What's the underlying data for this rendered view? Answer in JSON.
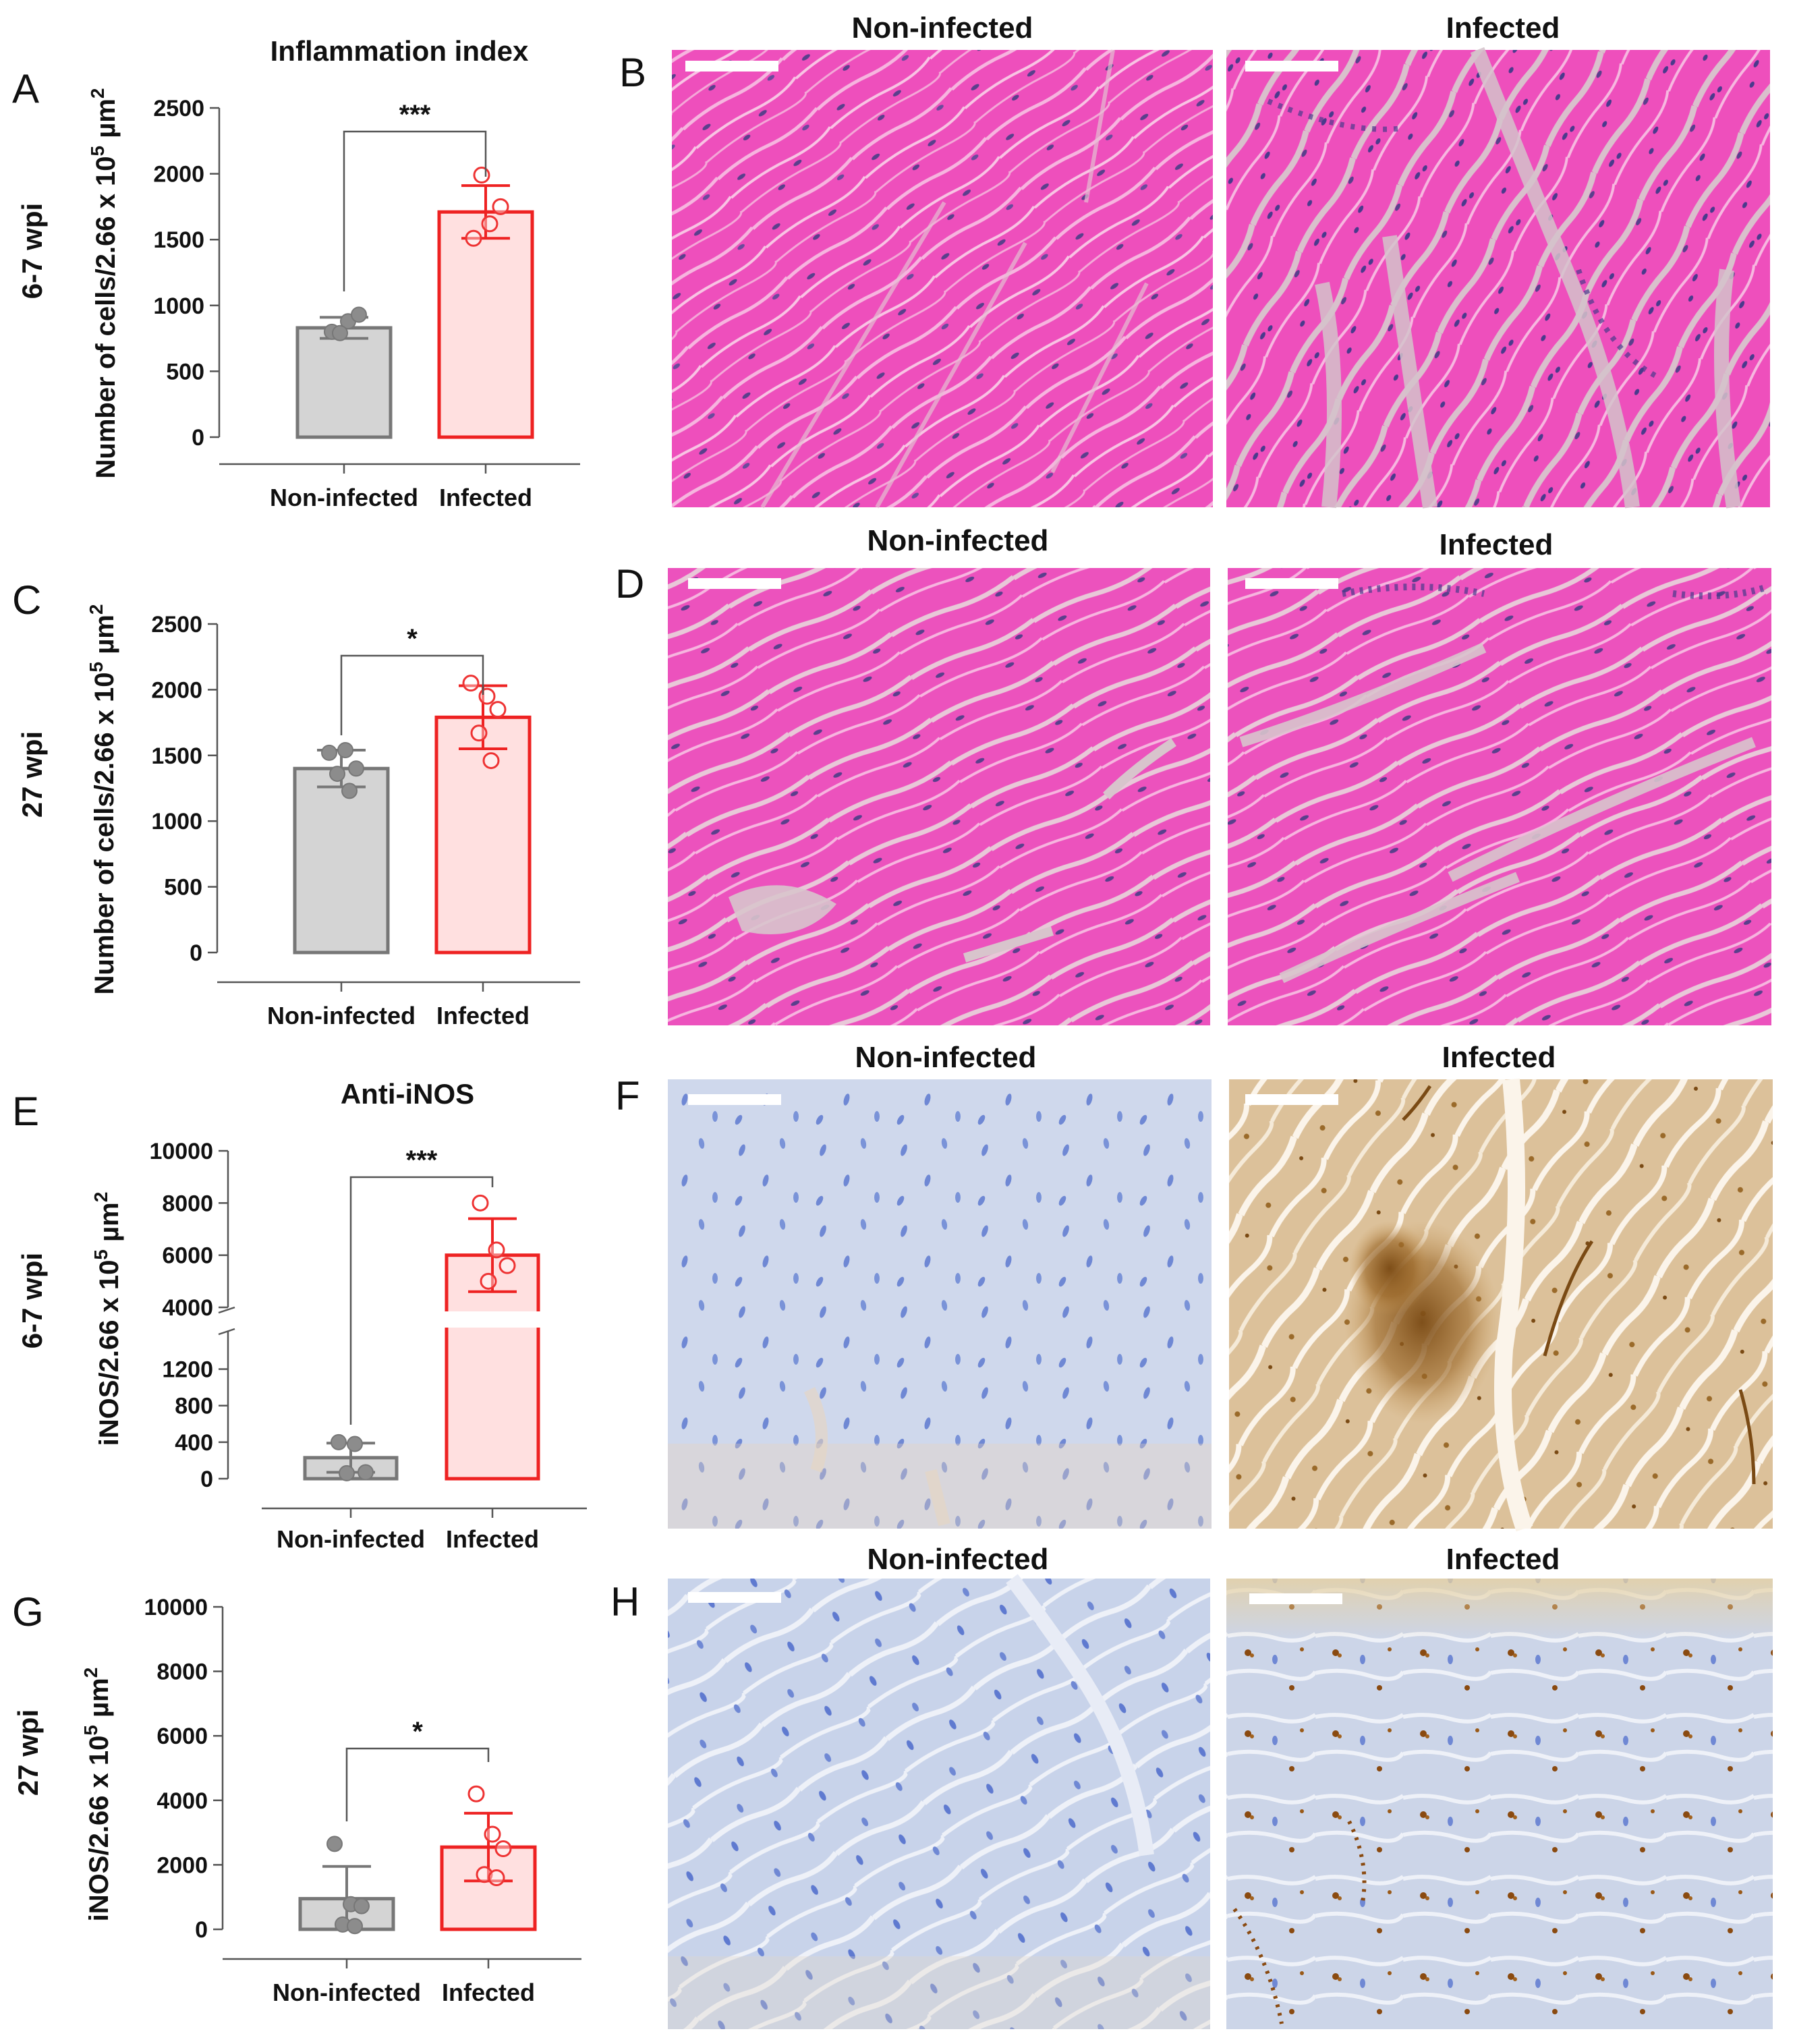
{
  "colors": {
    "control_fill": "#d4d4d4",
    "control_stroke": "#777777",
    "control_point": "#8c8c8c",
    "infected_fill": "#ffe0e0",
    "infected_stroke": "#ee2222",
    "infected_point": "#ee3333",
    "he_stain": "#ee4fbc",
    "he_gap": "#d6c0c8",
    "ihc_neg": "#c9d4ea",
    "ihc_pos": "#d8b988",
    "ihc_dark": "#7a4a14"
  },
  "icons": [
    "scale-bar"
  ],
  "panels": {
    "A": "A",
    "B": "B",
    "C": "C",
    "D": "D",
    "E": "E",
    "F": "F",
    "G": "G",
    "H": "H"
  },
  "rows": [
    "6-7 wpi",
    "27 wpi",
    "6-7 wpi",
    "27 wpi"
  ],
  "image_titles": {
    "non_infected": "Non-infected",
    "infected": "Infected"
  },
  "chart_data": [
    {
      "panel": "A",
      "type": "bar",
      "title": "Inflammation index",
      "ylabel_main": "Number of cells/2.66 x 10",
      "ylabel_sup1": "5",
      "ylabel_unit": " µm",
      "ylabel_sup2": "2",
      "categories": [
        "Non-infected",
        "Infected"
      ],
      "values": [
        830,
        1710
      ],
      "errors": [
        80,
        200
      ],
      "points": [
        [
          800,
          880,
          930,
          790
        ],
        [
          1510,
          1620,
          1750,
          1990
        ]
      ],
      "ylim": [
        0,
        2500
      ],
      "yticks": [
        0,
        500,
        1000,
        1500,
        2000,
        2500
      ],
      "significance": "***"
    },
    {
      "panel": "C",
      "type": "bar",
      "title": "",
      "ylabel_main": "Number of cells/2.66 x 10",
      "ylabel_sup1": "5",
      "ylabel_unit": " µm",
      "ylabel_sup2": "2",
      "categories": [
        "Non-infected",
        "Infected"
      ],
      "values": [
        1400,
        1790
      ],
      "errors": [
        140,
        240
      ],
      "points": [
        [
          1520,
          1540,
          1400,
          1360,
          1230
        ],
        [
          2050,
          1950,
          1850,
          1670,
          1460
        ]
      ],
      "ylim": [
        0,
        2500
      ],
      "yticks": [
        0,
        500,
        1000,
        1500,
        2000,
        2500
      ],
      "significance": "*"
    },
    {
      "panel": "E",
      "type": "bar",
      "title": "Anti-iNOS",
      "ylabel_main": "iNOS/2.66 x 10",
      "ylabel_sup1": "5",
      "ylabel_unit": " µm",
      "ylabel_sup2": "2",
      "categories": [
        "Non-infected",
        "Infected"
      ],
      "values": [
        230,
        6000
      ],
      "errors": [
        160,
        1400
      ],
      "points": [
        [
          400,
          380,
          70,
          60
        ],
        [
          8000,
          6200,
          5600,
          5000
        ]
      ],
      "axis_break": {
        "lower": [
          0,
          1500
        ],
        "upper": [
          4000,
          10000
        ]
      },
      "yticks_lower": [
        0,
        400,
        800,
        1200
      ],
      "yticks_upper": [
        4000,
        6000,
        8000,
        10000
      ],
      "significance": "***"
    },
    {
      "panel": "G",
      "type": "bar",
      "title": "",
      "ylabel_main": "iNOS/2.66 x 10",
      "ylabel_sup1": "5",
      "ylabel_unit": " µm",
      "ylabel_sup2": "2",
      "categories": [
        "Non-infected",
        "Infected"
      ],
      "values": [
        950,
        2550
      ],
      "errors": [
        1000,
        1050
      ],
      "points": [
        [
          2650,
          780,
          720,
          150,
          100
        ],
        [
          4200,
          2950,
          2500,
          1700,
          1600
        ]
      ],
      "ylim": [
        0,
        10000
      ],
      "yticks": [
        0,
        2000,
        4000,
        6000,
        8000,
        10000
      ],
      "significance": "*"
    }
  ]
}
